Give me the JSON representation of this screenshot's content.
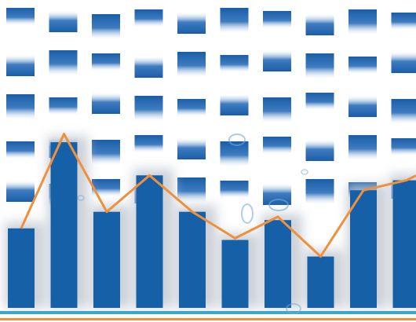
{
  "colors": {
    "background": "#ffffff",
    "tile_dark": "#1a5ea8",
    "tile_light": "#ffffff",
    "bar": "#1660a8",
    "bar_shadow": "#bfc6cf",
    "line": "#f0903c",
    "base_stripe": "#3aa9c9",
    "base_orange": "#f0903c",
    "droplet": "#6fa8d8"
  },
  "chart_data": {
    "type": "bar",
    "categories": [
      "",
      "",
      "",
      "",
      "",
      "",
      "",
      "",
      "",
      ""
    ],
    "series": [
      {
        "type": "bar",
        "values": [
          48,
          100,
          58,
          80,
          58,
          41,
          53,
          31,
          71,
          77
        ]
      },
      {
        "type": "line",
        "values": [
          48,
          105,
          58,
          80,
          58,
          42,
          55,
          31,
          71,
          77
        ]
      }
    ],
    "ylim": [
      0,
      110
    ],
    "grid": false,
    "title": "",
    "xlabel": "",
    "ylabel": ""
  }
}
